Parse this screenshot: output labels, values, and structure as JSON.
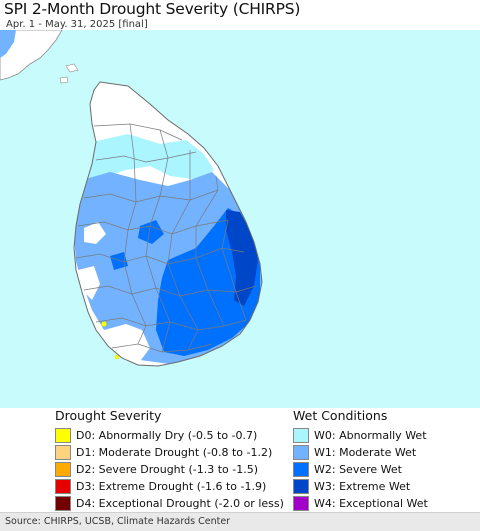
{
  "header": {
    "title": "SPI 2-Month Drought Severity (CHIRPS)",
    "subtitle": "Apr. 1 - May. 31, 2025 [final]"
  },
  "map": {
    "sea_color": "#c8fcfc",
    "land_color": "#ffffff",
    "boundary_color": "#7a7a7a"
  },
  "legend": {
    "drought": {
      "heading": "Drought Severity",
      "items": [
        {
          "label": "D0: Abnormally Dry (-0.5 to -0.7)",
          "color": "#ffff00"
        },
        {
          "label": "D1: Moderate Drought (-0.8 to -1.2)",
          "color": "#fcd37f"
        },
        {
          "label": "D2: Severe Drought (-1.3 to -1.5)",
          "color": "#ffaa00"
        },
        {
          "label": "D3: Extreme Drought (-1.6 to -1.9)",
          "color": "#e60000"
        },
        {
          "label": "D4: Exceptional Drought (-2.0 or less)",
          "color": "#730000"
        }
      ]
    },
    "wet": {
      "heading": "Wet Conditions",
      "items": [
        {
          "label": "W0: Abnormally Wet",
          "color": "#aaf5ff"
        },
        {
          "label": "W1: Moderate Wet",
          "color": "#73b2ff"
        },
        {
          "label": "W2: Severe Wet",
          "color": "#0070ff"
        },
        {
          "label": "W3: Extreme Wet",
          "color": "#0046c8"
        },
        {
          "label": "W4: Exceptional Wet",
          "color": "#a000c8"
        }
      ]
    }
  },
  "footer": {
    "source": "Source: CHIRPS, UCSB, Climate Hazards Center"
  }
}
